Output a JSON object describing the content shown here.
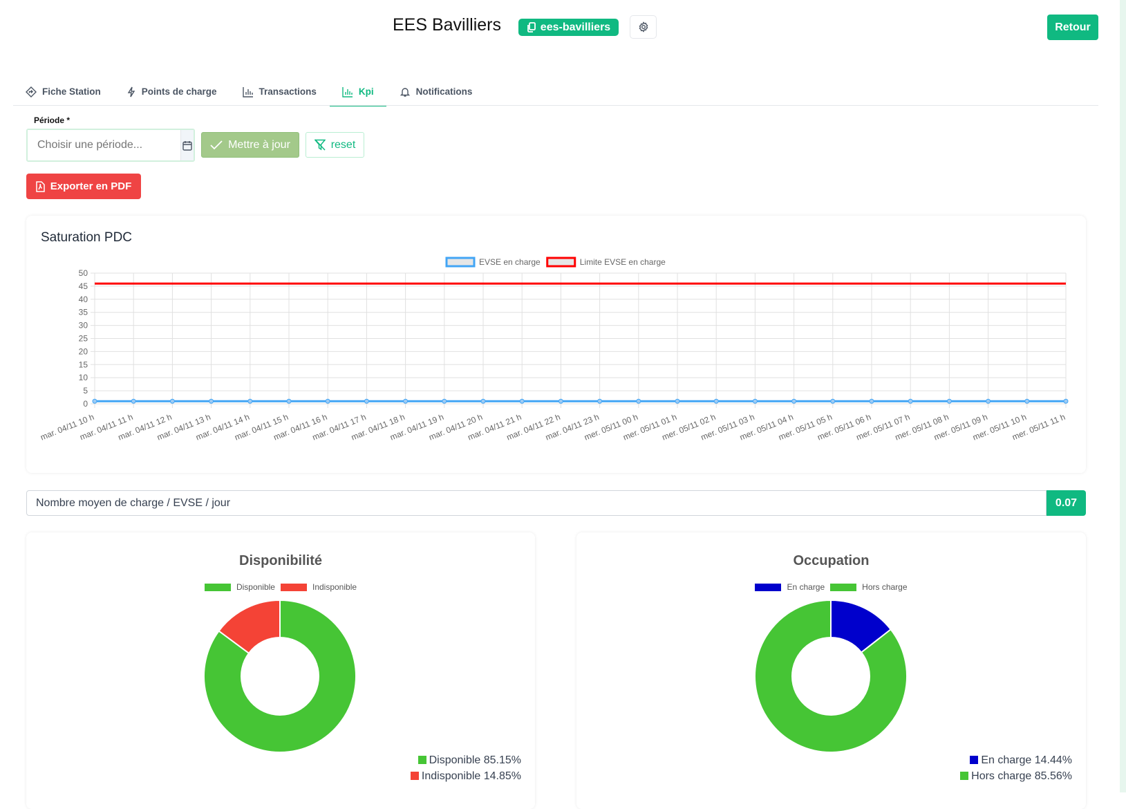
{
  "header": {
    "title": "EES Bavilliers",
    "badge": "ees-bavilliers",
    "back_label": "Retour"
  },
  "tabs": [
    {
      "label": "Fiche Station",
      "icon": "diamond-arrow-icon"
    },
    {
      "label": "Points de charge",
      "icon": "lightning-icon"
    },
    {
      "label": "Transactions",
      "icon": "bar-chart-icon"
    },
    {
      "label": "Kpi",
      "icon": "bar-chart-icon",
      "active": true
    },
    {
      "label": "Notifications",
      "icon": "bell-icon"
    }
  ],
  "filters": {
    "period_label": "Période *",
    "period_placeholder": "Choisir une période...",
    "update_label": "Mettre à jour",
    "reset_label": "reset",
    "export_label": "Exporter en PDF"
  },
  "colors": {
    "accent": "#10b981",
    "danger": "#ef4444",
    "update": "#a3c98a"
  },
  "saturation": {
    "title": "Saturation PDC"
  },
  "kpi": {
    "label": "Nombre moyen de charge / EVSE / jour",
    "value": "0.07"
  },
  "chart_data": [
    {
      "type": "line",
      "title": "Saturation PDC",
      "x": [
        "mar. 04/11 10 h",
        "mar. 04/11 11 h",
        "mar. 04/11 12 h",
        "mar. 04/11 13 h",
        "mar. 04/11 14 h",
        "mar. 04/11 15 h",
        "mar. 04/11 16 h",
        "mar. 04/11 17 h",
        "mar. 04/11 18 h",
        "mar. 04/11 19 h",
        "mar. 04/11 20 h",
        "mar. 04/11 21 h",
        "mar. 04/11 22 h",
        "mar. 04/11 23 h",
        "mer. 05/11 00 h",
        "mer. 05/11 01 h",
        "mer. 05/11 02 h",
        "mer. 05/11 03 h",
        "mer. 05/11 04 h",
        "mer. 05/11 05 h",
        "mer. 05/11 06 h",
        "mer. 05/11 07 h",
        "mer. 05/11 08 h",
        "mer. 05/11 09 h",
        "mer. 05/11 10 h",
        "mer. 05/11 11 h"
      ],
      "series": [
        {
          "name": "EVSE en charge",
          "color": "#42a5f5",
          "values": [
            1,
            1,
            1,
            1,
            1,
            1,
            1,
            1,
            1,
            1,
            1,
            1,
            1,
            1,
            1,
            1,
            1,
            1,
            1,
            1,
            1,
            1,
            1,
            1,
            1,
            1
          ]
        },
        {
          "name": "Limite EVSE en charge",
          "color": "#ff0000",
          "values": [
            46,
            46,
            46,
            46,
            46,
            46,
            46,
            46,
            46,
            46,
            46,
            46,
            46,
            46,
            46,
            46,
            46,
            46,
            46,
            46,
            46,
            46,
            46,
            46,
            46,
            46
          ]
        }
      ],
      "ylim": [
        0,
        50
      ],
      "yticks": [
        "0",
        "5",
        "10",
        "15",
        "20",
        "25",
        "30",
        "35",
        "40",
        "45",
        "50"
      ],
      "grid": true,
      "legend": "top"
    },
    {
      "type": "pie",
      "title": "Disponibilité",
      "categories": [
        "Disponible",
        "Indisponible"
      ],
      "values": [
        85.15,
        14.85
      ],
      "colors": [
        "#46c535",
        "#f44336"
      ],
      "labels": [
        "Disponible 85.15%",
        "Indisponible 14.85%"
      ],
      "legend": "top"
    },
    {
      "type": "pie",
      "title": "Occupation",
      "categories": [
        "En charge",
        "Hors charge"
      ],
      "values": [
        14.44,
        85.56
      ],
      "colors": [
        "#0000cc",
        "#46c535"
      ],
      "labels": [
        "En charge 14.44%",
        "Hors charge 85.56%"
      ],
      "legend": "top"
    }
  ]
}
